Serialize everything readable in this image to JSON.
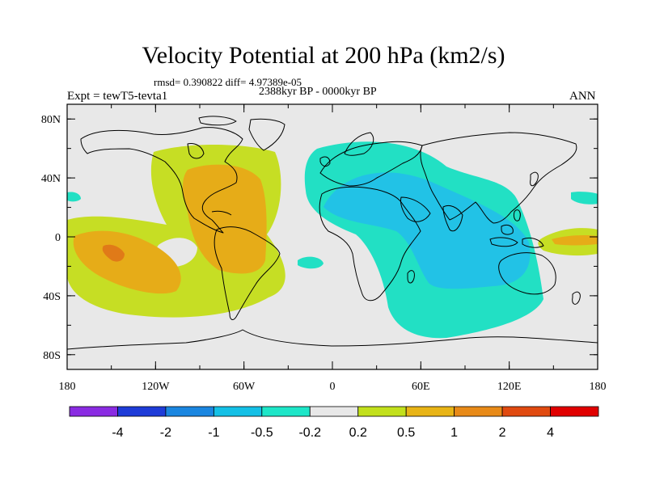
{
  "header": {
    "title": "Velocity Potential at 200 hPa (km2/s)",
    "stats": "rmsd= 0.390822  diff= 4.97389e-05",
    "period": "2388kyr BP - 0000kyr BP",
    "experiment": "Expt = tewT5-tevta1",
    "season": "ANN"
  },
  "axes": {
    "lat_ticks": [
      {
        "value": 80,
        "label": "80N"
      },
      {
        "value": 40,
        "label": "40N"
      },
      {
        "value": 0,
        "label": "0"
      },
      {
        "value": -40,
        "label": "40S"
      },
      {
        "value": -80,
        "label": "80S"
      }
    ],
    "lon_ticks": [
      {
        "value": -180,
        "label": "180"
      },
      {
        "value": -120,
        "label": "120W"
      },
      {
        "value": -60,
        "label": "60W"
      },
      {
        "value": 0,
        "label": "0"
      },
      {
        "value": 60,
        "label": "60E"
      },
      {
        "value": 120,
        "label": "120E"
      },
      {
        "value": 180,
        "label": "180"
      }
    ]
  },
  "colorbar": {
    "colors": [
      "#8a2be2",
      "#1e3cd8",
      "#1a86e0",
      "#14c0e6",
      "#1de6c8",
      "#e8e8e8",
      "#c2e01c",
      "#e8b416",
      "#e88a18",
      "#e04a10",
      "#e00000"
    ],
    "labels": [
      "-4",
      "-2",
      "-1",
      "-0.5",
      "-0.2",
      "0.2",
      "0.5",
      "1",
      "2",
      "4"
    ]
  },
  "map_colors": {
    "ocean": "#e8e8e8",
    "pos_light": "#c6de24",
    "pos_mid": "#e6ac18",
    "pos_strong": "#e07a18",
    "neg_light": "#22e0c4",
    "neg_mid": "#22c2e6",
    "coast": "#000000"
  }
}
